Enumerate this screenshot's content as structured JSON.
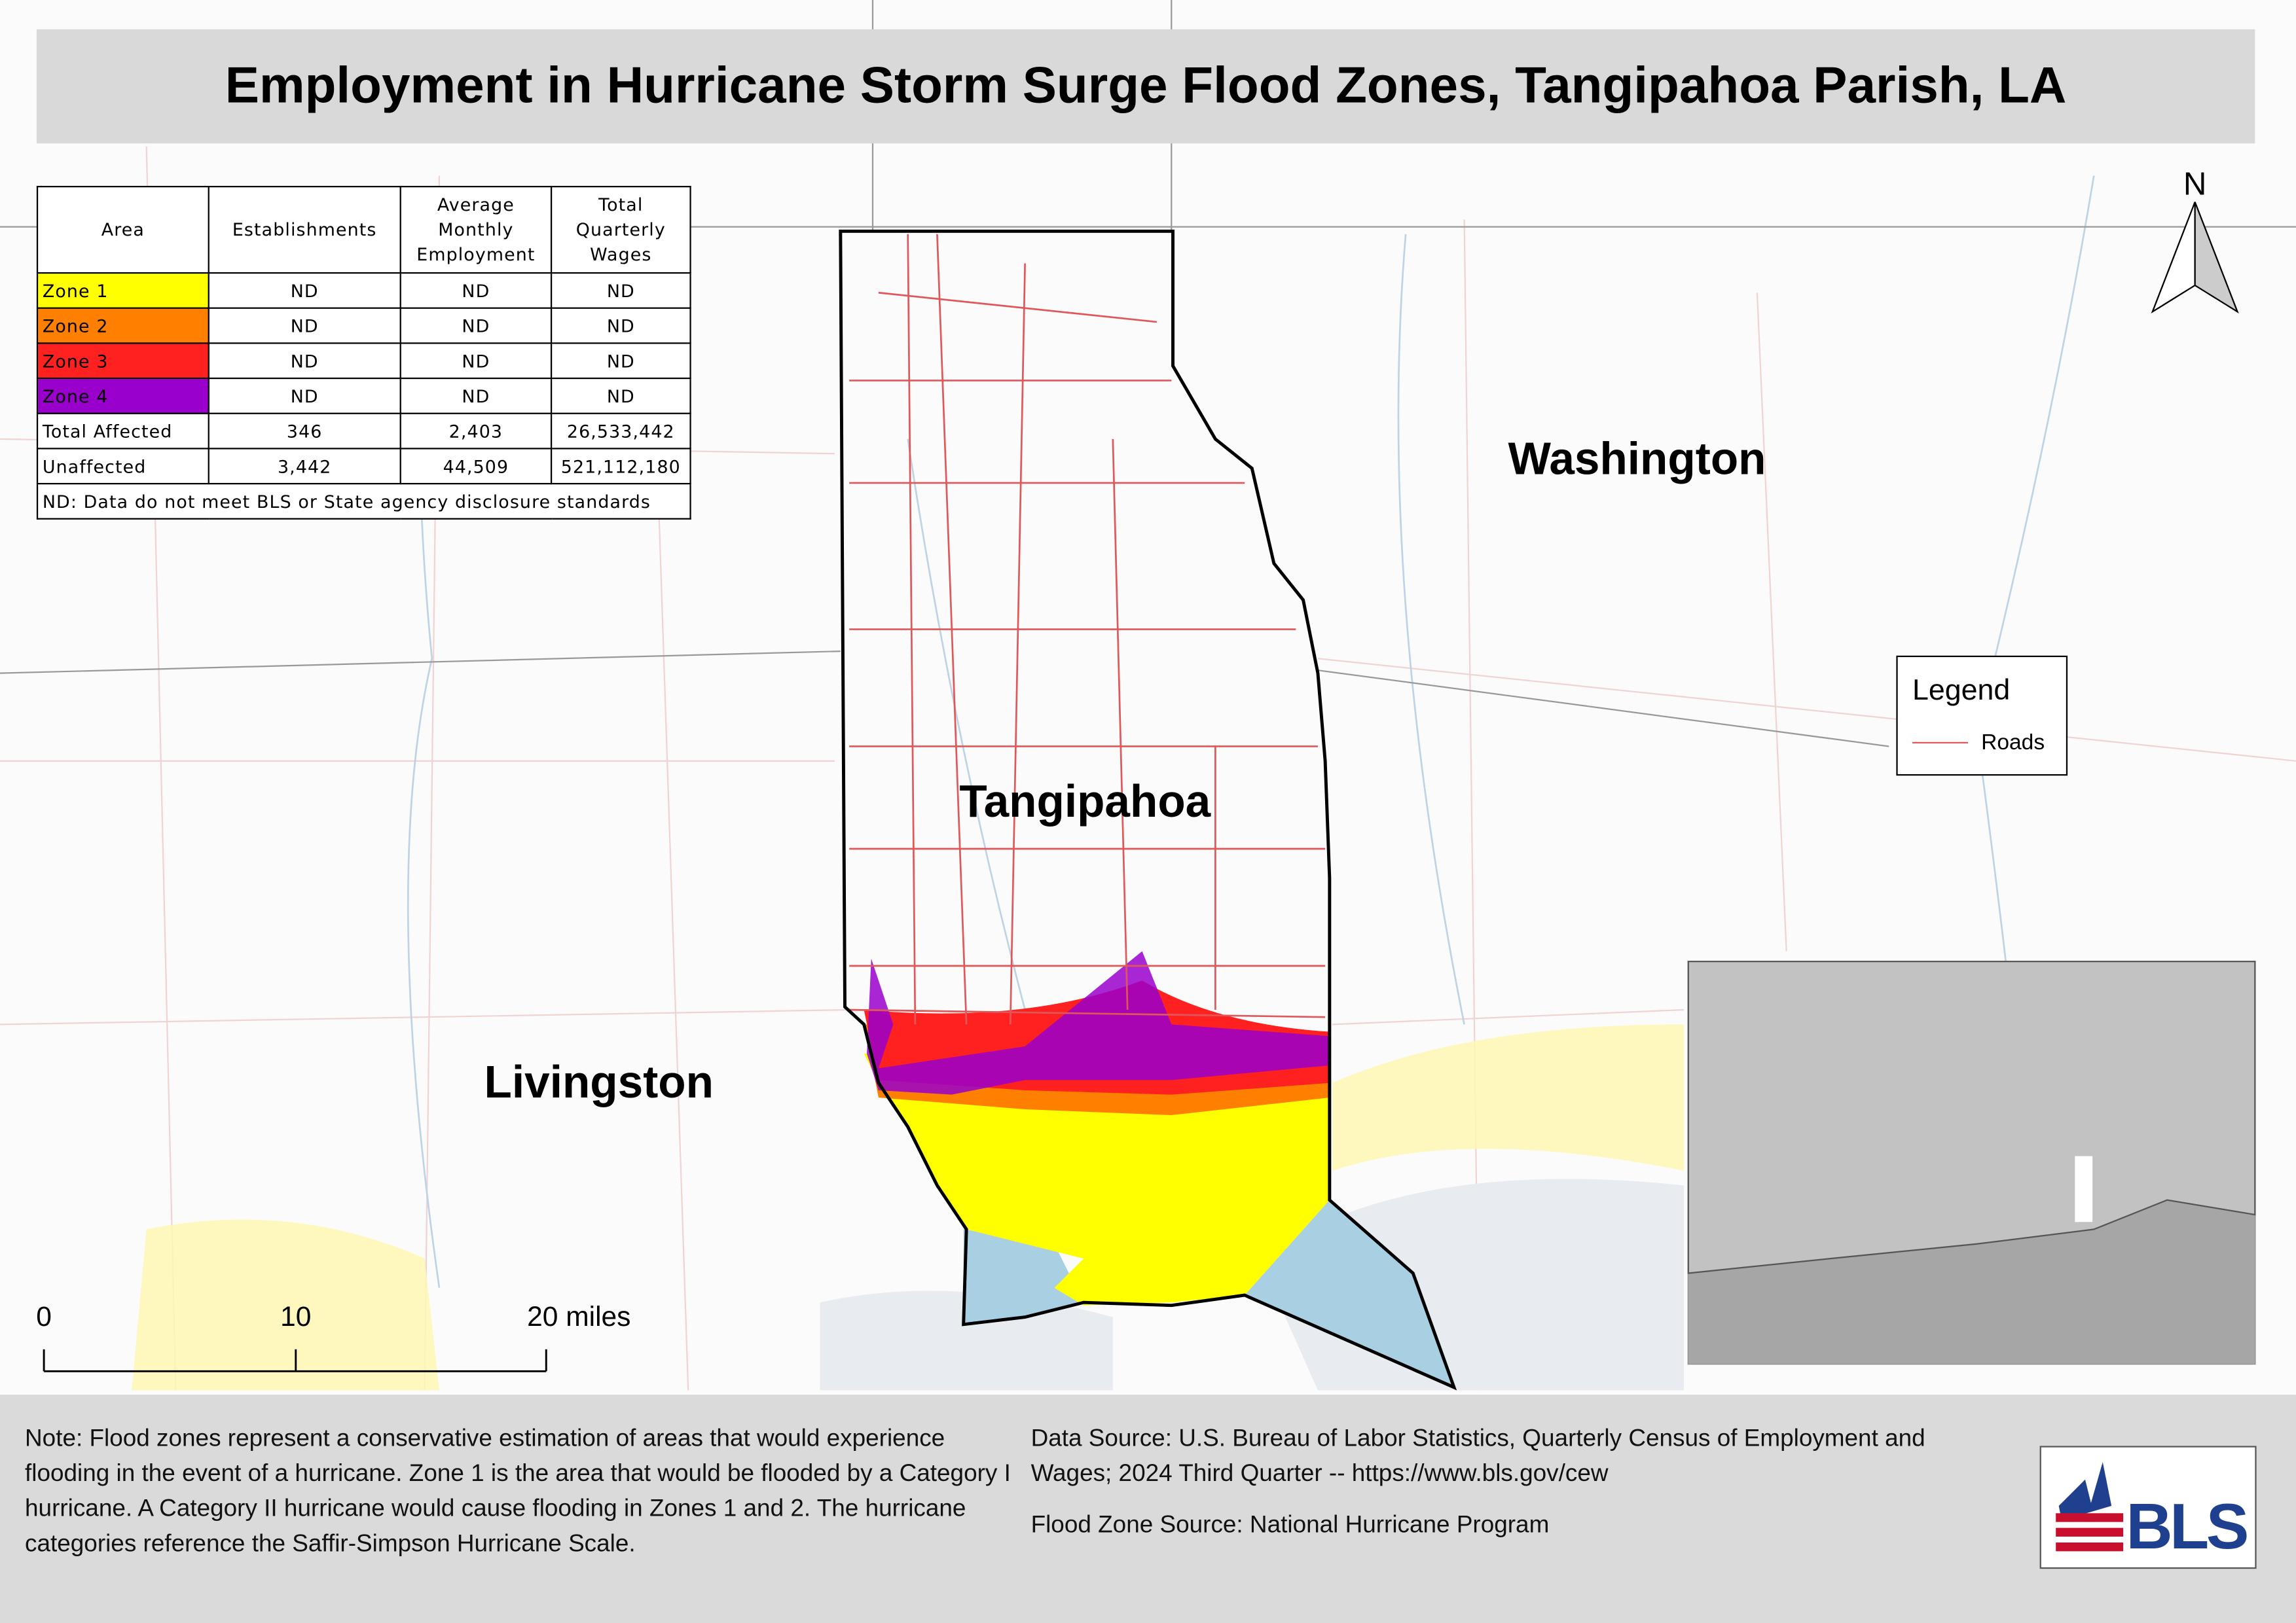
{
  "title": "Employment in Hurricane Storm Surge Flood Zones, Tangipahoa Parish, LA",
  "table": {
    "headers": [
      "Area",
      "Establishments",
      "Average Monthly Employment",
      "Total Quarterly Wages"
    ],
    "rows": [
      [
        "Zone 1",
        "ND",
        "ND",
        "ND"
      ],
      [
        "Zone 2",
        "ND",
        "ND",
        "ND"
      ],
      [
        "Zone 3",
        "ND",
        "ND",
        "ND"
      ],
      [
        "Zone 4",
        "ND",
        "ND",
        "ND"
      ],
      [
        "Total Affected",
        "346",
        "2,403",
        "26,533,442"
      ],
      [
        "Unaffected",
        "3,442",
        "44,509",
        "521,112,180"
      ]
    ],
    "footnote": "ND: Data do not meet BLS or State agency disclosure standards"
  },
  "labels": [
    "Washington",
    "Tangipahoa",
    "Livingston"
  ],
  "legend": {
    "title": "Legend",
    "items": [
      "Roads"
    ]
  },
  "north": "N",
  "scale_bar": [
    "0",
    "10",
    "20 miles"
  ],
  "notes": "Note: Flood zones represent a conservative estimation of areas that would experience flooding in the event of a hurricane. Zone 1 is the area that would be flooded by a Category I hurricane. A Category II hurricane would cause flooding in Zones 1 and 2. The hurricane categories reference the Saffir-Simpson Hurricane Scale.",
  "data_source": "Data Source: U.S. Bureau of Labor Statistics, Quarterly Census of Employment and Wages; 2024 Third Quarter -- https://www.bls.gov/cew",
  "flood_zone_source": "Flood Zone Source: National Hurricane Program",
  "logo": "BLS"
}
